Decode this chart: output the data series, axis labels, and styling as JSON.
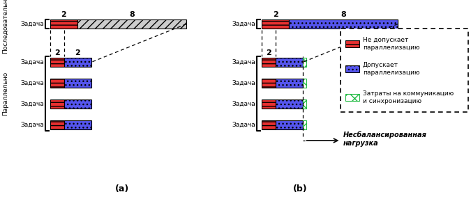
{
  "label_seq": "Последовательно",
  "label_par": "Параллельно",
  "label_task": "Задача",
  "legend_red": "Не допускает\nпараллелизацию",
  "legend_blue": "Допускает\nпараллелизацию",
  "legend_green": "Затраты на коммуникацию\nи синхронизацию",
  "unbalanced": "Несбалансированная\nнагрузка",
  "caption_a": "(a)",
  "caption_b": "(b)",
  "red_color": "#e83030",
  "blue_color": "#5555ee",
  "blue_seq_color": "#9999cc",
  "green_color": "#ffffff",
  "green_edge": "#22bb44"
}
